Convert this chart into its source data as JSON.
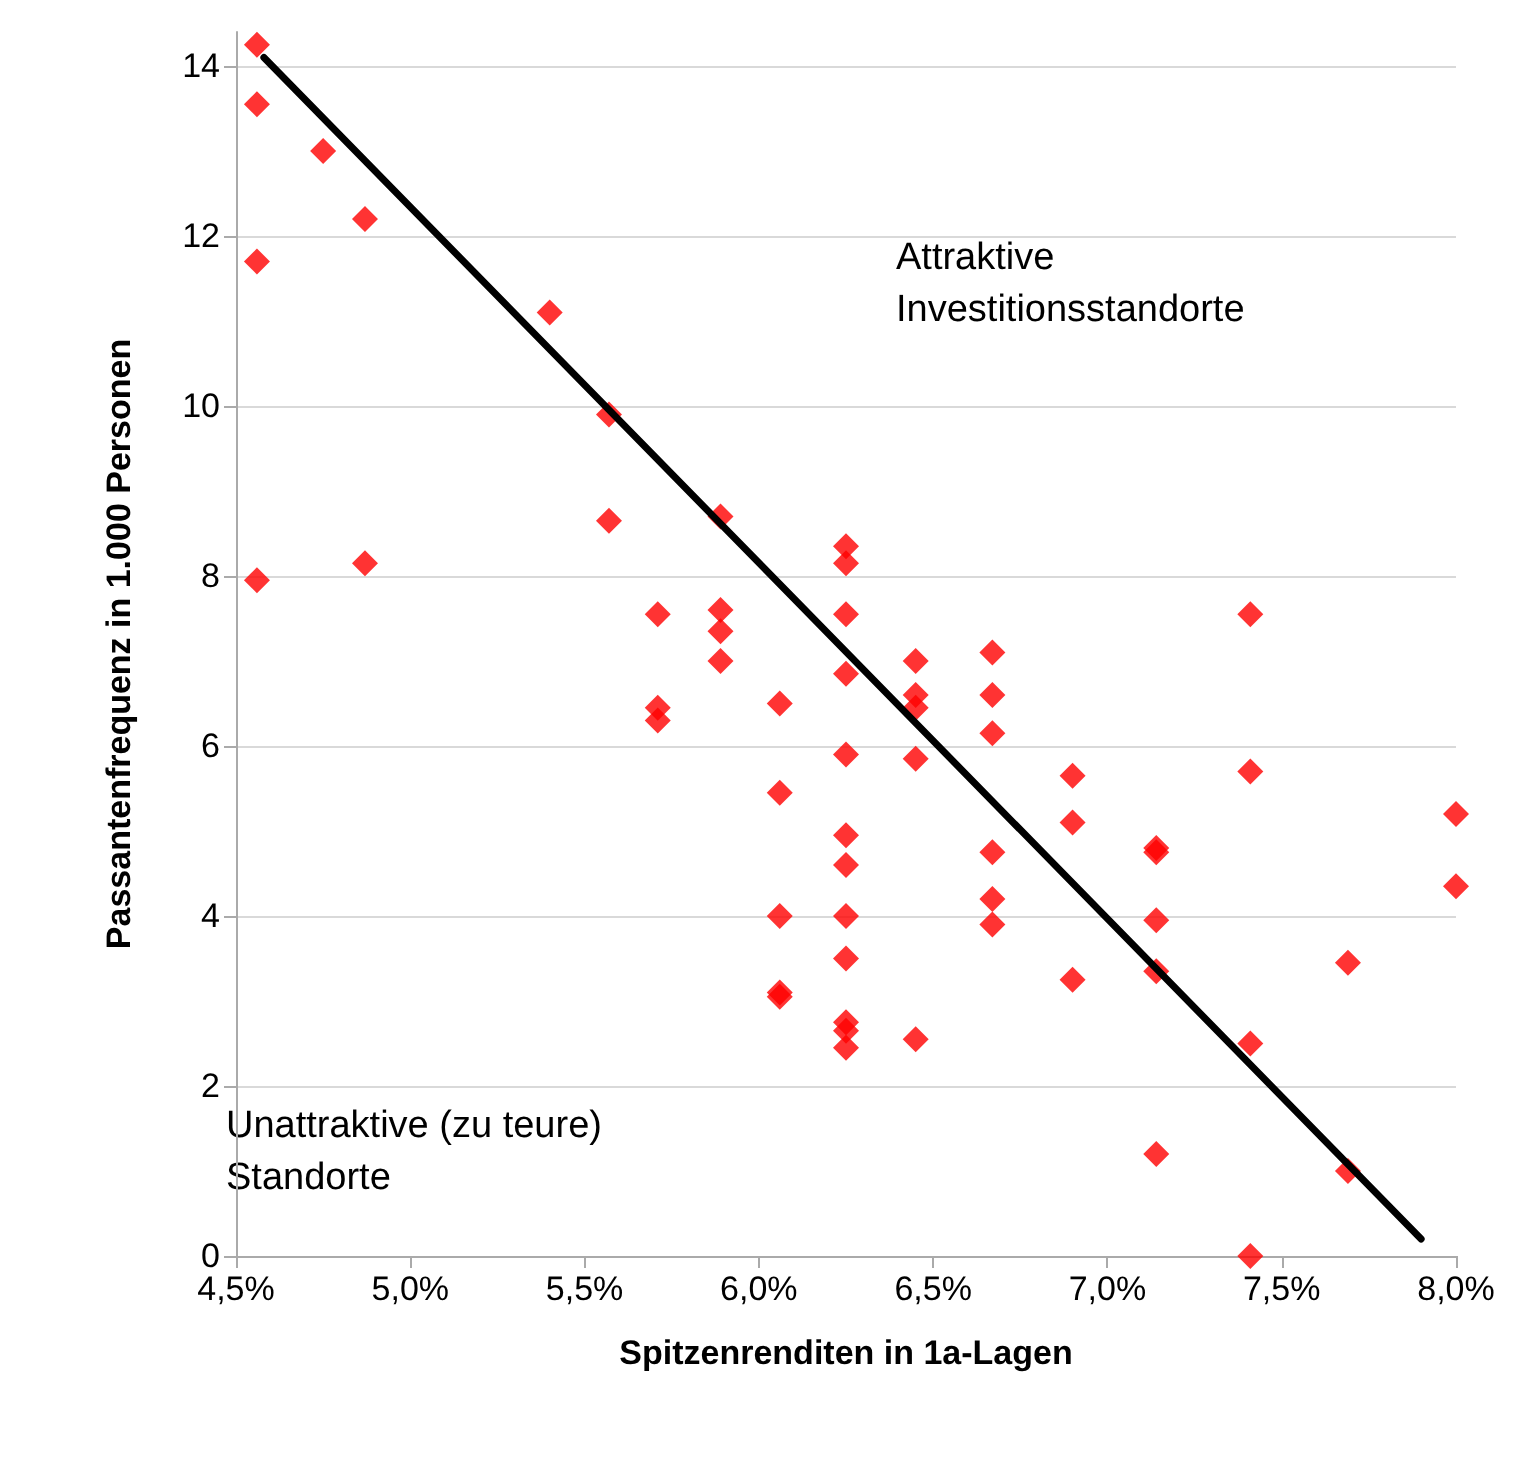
{
  "chart_data": {
    "type": "scatter",
    "xlabel": "Spitzenrenditen in 1a-Lagen",
    "ylabel": "Passantenfrequenz in 1.000 Personen",
    "xlim": [
      4.5,
      8.0
    ],
    "ylim": [
      0,
      14.4
    ],
    "xticks": [
      {
        "value": 4.5,
        "label": "4,5%"
      },
      {
        "value": 5.0,
        "label": "5,0%"
      },
      {
        "value": 5.5,
        "label": "5,5%"
      },
      {
        "value": 6.0,
        "label": "6,0%"
      },
      {
        "value": 6.5,
        "label": "6,5%"
      },
      {
        "value": 7.0,
        "label": "7,0%"
      },
      {
        "value": 7.5,
        "label": "7,5%"
      },
      {
        "value": 8.0,
        "label": "8,0%"
      }
    ],
    "yticks": [
      0,
      2,
      4,
      6,
      8,
      10,
      12,
      14
    ],
    "grid": "y",
    "marker": "diamond",
    "annotations": [
      "Attraktive\nInvestitionsstandorte",
      "Unattraktive (zu teure)\nStandorte"
    ],
    "series": [
      {
        "color": "#ff0000",
        "x": [
          4.56,
          4.56,
          4.56,
          4.56,
          4.75,
          4.87,
          4.87,
          5.4,
          5.57,
          5.57,
          5.71,
          5.71,
          5.71,
          5.89,
          5.89,
          5.89,
          5.89,
          6.06,
          6.06,
          6.06,
          6.06,
          6.06,
          6.25,
          6.25,
          6.25,
          6.25,
          6.25,
          6.25,
          6.25,
          6.25,
          6.25,
          6.25,
          6.25,
          6.25,
          6.45,
          6.45,
          6.45,
          6.45,
          6.45,
          6.67,
          6.67,
          6.67,
          6.67,
          6.67,
          6.67,
          6.9,
          6.9,
          6.9,
          7.14,
          7.14,
          7.14,
          7.14,
          7.14,
          7.41,
          7.41,
          7.41,
          7.41,
          7.69,
          7.69,
          8.0,
          8.0
        ],
        "values": [
          14.25,
          13.55,
          11.7,
          7.95,
          13.0,
          12.2,
          8.15,
          11.1,
          9.9,
          8.65,
          7.55,
          6.45,
          6.3,
          8.7,
          7.6,
          7.35,
          7.0,
          6.5,
          5.45,
          4.0,
          3.1,
          3.05,
          8.35,
          8.15,
          7.55,
          6.85,
          5.9,
          4.95,
          4.6,
          4.0,
          3.5,
          2.75,
          2.65,
          2.45,
          7.0,
          6.6,
          6.45,
          5.85,
          2.55,
          7.1,
          6.6,
          6.15,
          4.75,
          4.2,
          3.9,
          5.65,
          5.1,
          3.25,
          4.8,
          4.75,
          3.95,
          3.35,
          1.2,
          7.55,
          5.7,
          2.5,
          0.0,
          3.45,
          1.0,
          5.2,
          4.35
        ]
      },
      {
        "type": "line",
        "color": "#000000",
        "marker": "none",
        "x": [
          4.58,
          7.9
        ],
        "values": [
          14.1,
          0.2
        ]
      }
    ]
  }
}
